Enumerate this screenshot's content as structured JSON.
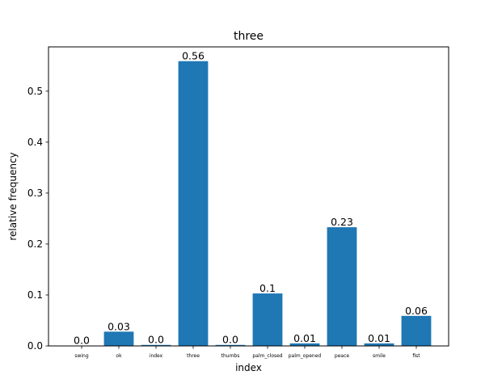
{
  "chart_data": {
    "type": "bar",
    "title": "three",
    "xlabel": "index",
    "ylabel": "relative frequency",
    "categories": [
      "swing",
      "ok",
      "index",
      "three",
      "thumbs",
      "palm_closed",
      "palm_opened",
      "peace",
      "smile",
      "fist"
    ],
    "values": [
      0.0005,
      0.028,
      0.002,
      0.559,
      0.002,
      0.103,
      0.005,
      0.233,
      0.005,
      0.059
    ],
    "data_labels": [
      "0.0",
      "0.03",
      "0.0",
      "0.56",
      "0.0",
      "0.1",
      "0.01",
      "0.23",
      "0.01",
      "0.06"
    ],
    "ylim": [
      0,
      0.587
    ],
    "yticks": [
      0,
      0.1,
      0.2,
      0.3,
      0.4,
      0.5
    ],
    "ytick_labels": [
      "0.0",
      "0.1",
      "0.2",
      "0.3",
      "0.4",
      "0.5"
    ],
    "bar_color": "#1f77b4",
    "grid": false
  }
}
